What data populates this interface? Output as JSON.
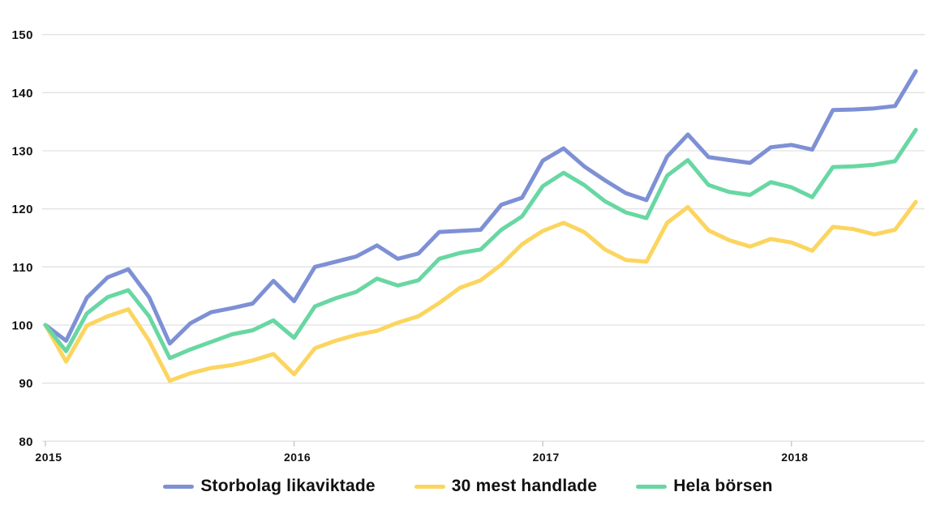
{
  "chart_data": {
    "type": "line",
    "title": "",
    "xlabel": "",
    "ylabel": "",
    "background_color": "#ffffff",
    "grid": "horizontal",
    "grid_color": "#e2e2e2",
    "axis_color": "#d5d5d5",
    "text_color": "#111111",
    "legend_position": "bottom-center",
    "y_axis": {
      "min": 80,
      "max": 150,
      "tick_labels": [
        "80",
        "90",
        "100",
        "110",
        "120",
        "130",
        "140",
        "150"
      ],
      "tick_values": [
        80,
        90,
        100,
        110,
        120,
        130,
        140,
        150
      ]
    },
    "x_axis": {
      "tick_labels": [
        "2015",
        "2016",
        "2017",
        "2018"
      ],
      "tick_month_index": [
        0,
        12,
        24,
        36
      ]
    },
    "x": [
      "2015-01",
      "2015-02",
      "2015-03",
      "2015-04",
      "2015-05",
      "2015-06",
      "2015-07",
      "2015-08",
      "2015-09",
      "2015-10",
      "2015-11",
      "2015-12",
      "2016-01",
      "2016-02",
      "2016-03",
      "2016-04",
      "2016-05",
      "2016-06",
      "2016-07",
      "2016-08",
      "2016-09",
      "2016-10",
      "2016-11",
      "2016-12",
      "2017-01",
      "2017-02",
      "2017-03",
      "2017-04",
      "2017-05",
      "2017-06",
      "2017-07",
      "2017-08",
      "2017-09",
      "2017-10",
      "2017-11",
      "2017-12",
      "2018-01",
      "2018-02",
      "2018-03",
      "2018-04",
      "2018-05",
      "2018-06",
      "2018-07"
    ],
    "series": [
      {
        "name": "Storbolag likaviktade",
        "color": "#7E90D5",
        "values": [
          100,
          97.3,
          104.7,
          108.2,
          109.6,
          104.8,
          96.8,
          100.3,
          102.2,
          102.9,
          103.7,
          107.6,
          104.1,
          110.0,
          110.9,
          111.8,
          113.7,
          111.4,
          112.3,
          116.0,
          116.2,
          116.4,
          120.7,
          121.9,
          128.3,
          130.4,
          127.3,
          124.9,
          122.7,
          121.5,
          129.0,
          132.8,
          128.9,
          128.4,
          127.9,
          130.6,
          131.0,
          130.2,
          137.0,
          137.1,
          137.3,
          137.7,
          143.7
        ]
      },
      {
        "name": "30 mest handlade",
        "color": "#FBD55F",
        "values": [
          100,
          93.7,
          99.9,
          101.5,
          102.7,
          97.3,
          90.4,
          91.7,
          92.6,
          93.1,
          93.9,
          95.0,
          91.5,
          96.0,
          97.3,
          98.3,
          99.0,
          100.4,
          101.5,
          103.8,
          106.4,
          107.7,
          110.4,
          113.9,
          116.2,
          117.6,
          116.0,
          113.0,
          111.2,
          110.9,
          117.6,
          120.3,
          116.3,
          114.6,
          113.5,
          114.8,
          114.2,
          112.8,
          116.9,
          116.5,
          115.6,
          116.4,
          121.2
        ]
      },
      {
        "name": "Hela börsen",
        "color": "#68D7A3",
        "values": [
          100,
          95.5,
          102.0,
          104.8,
          106.0,
          101.5,
          94.3,
          95.8,
          97.1,
          98.4,
          99.1,
          100.8,
          97.8,
          103.2,
          104.6,
          105.7,
          108.0,
          106.8,
          107.7,
          111.4,
          112.4,
          113.0,
          116.4,
          118.7,
          123.9,
          126.2,
          124.1,
          121.3,
          119.4,
          118.4,
          125.7,
          128.4,
          124.1,
          122.9,
          122.4,
          124.6,
          123.7,
          122.0,
          127.2,
          127.3,
          127.6,
          128.2,
          133.6
        ]
      }
    ]
  }
}
